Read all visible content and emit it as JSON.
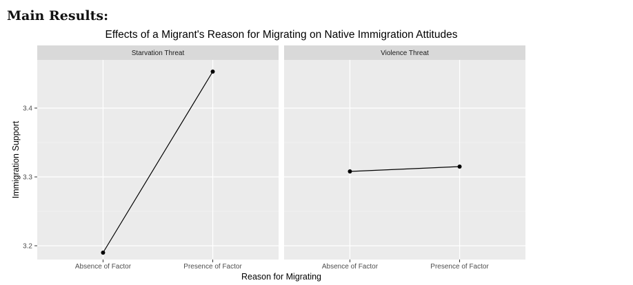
{
  "heading": "Main Results:",
  "chart_data": {
    "type": "line",
    "title": "Effects of a Migrant's Reason for Migrating on Native Immigration Attitudes",
    "xlabel": "Reason for Migrating",
    "ylabel": "Immigration Support",
    "categories": [
      "Absence of Factor",
      "Presence of Factor"
    ],
    "ylim": [
      3.18,
      3.47
    ],
    "yticks": [
      3.2,
      3.3,
      3.4
    ],
    "yticklabels": [
      "3.2",
      "3.3",
      "3.4"
    ],
    "grid": true,
    "facets": [
      {
        "name": "Starvation Threat",
        "values": [
          3.19,
          3.453
        ]
      },
      {
        "name": "Violence Threat",
        "values": [
          3.308,
          3.315
        ]
      }
    ]
  }
}
